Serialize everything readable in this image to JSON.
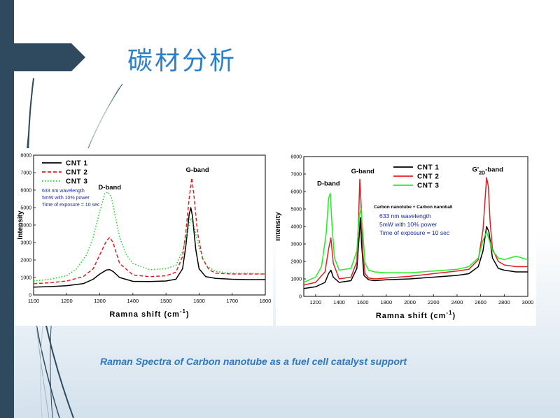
{
  "slide": {
    "title": "碳材分析",
    "caption": "Raman Spectra of Carbon nanotube as a fuel cell catalyst support",
    "colors": {
      "bar": "#2f4a5e",
      "title": "#2b7fc8",
      "caption": "#2c7ac1"
    }
  },
  "chart_data": [
    {
      "type": "line",
      "xlabel": "Ramna shift (cm-1)",
      "ylabel": "Intensity",
      "xlim": [
        1100,
        1800
      ],
      "ylim": [
        0,
        8000
      ],
      "xticks": [
        1100,
        1200,
        1300,
        1400,
        1500,
        1600,
        1700,
        1800
      ],
      "xtick_labels": [
        "1100",
        "1200",
        "1300",
        "1400",
        "1500",
        "1600",
        "1700",
        "1800"
      ],
      "yticks": [
        0,
        1000,
        2000,
        3000,
        4000,
        5000,
        6000,
        7000,
        8000
      ],
      "legend_position": "top-left",
      "annotations": [
        {
          "text": "D-band",
          "x": 1330,
          "y": 6050
        },
        {
          "text": "G-band",
          "x": 1595,
          "y": 7050
        }
      ],
      "note_lines": [
        "633 nm wavelength",
        "5mW with 10% power",
        "Time of exposure = 10 sec"
      ],
      "series": [
        {
          "name": "CNT 1",
          "style": "solid",
          "color": "#000000",
          "x": [
            1100,
            1150,
            1200,
            1250,
            1280,
            1300,
            1320,
            1330,
            1340,
            1360,
            1400,
            1450,
            1500,
            1530,
            1550,
            1560,
            1570,
            1575,
            1580,
            1590,
            1600,
            1620,
            1650,
            1700,
            1750,
            1800
          ],
          "y": [
            450,
            480,
            530,
            650,
            900,
            1200,
            1430,
            1450,
            1350,
            1000,
            780,
            770,
            800,
            900,
            1500,
            2800,
            4600,
            5000,
            4500,
            2600,
            1500,
            1050,
            950,
            900,
            880,
            880
          ]
        },
        {
          "name": "CNT 2",
          "style": "dashed",
          "color": "#e02020",
          "x": [
            1100,
            1150,
            1200,
            1250,
            1280,
            1300,
            1320,
            1330,
            1340,
            1360,
            1400,
            1450,
            1500,
            1530,
            1550,
            1560,
            1570,
            1578,
            1585,
            1595,
            1610,
            1630,
            1650,
            1700,
            1750,
            1800
          ],
          "y": [
            650,
            700,
            800,
            1050,
            1500,
            2300,
            3100,
            3300,
            3000,
            1800,
            1150,
            1050,
            1100,
            1300,
            2200,
            3600,
            5500,
            6700,
            5600,
            3600,
            2100,
            1450,
            1250,
            1200,
            1200,
            1200
          ]
        },
        {
          "name": "CNT 3",
          "style": "dotted",
          "color": "#22cc22",
          "x": [
            1100,
            1150,
            1200,
            1230,
            1260,
            1280,
            1300,
            1315,
            1325,
            1335,
            1345,
            1360,
            1380,
            1400,
            1450,
            1500,
            1530,
            1550,
            1565,
            1575,
            1585,
            1600,
            1620,
            1650,
            1700,
            1750,
            1800
          ],
          "y": [
            800,
            900,
            1100,
            1500,
            2300,
            3300,
            4800,
            5800,
            5900,
            5600,
            4700,
            3300,
            2300,
            1800,
            1450,
            1500,
            1700,
            2500,
            3600,
            4400,
            3900,
            2700,
            1700,
            1350,
            1250,
            1250,
            1200
          ]
        }
      ]
    },
    {
      "type": "line",
      "xlabel": "Ramna shift (cm-1)",
      "ylabel": "Intensity",
      "xlim": [
        1100,
        3000
      ],
      "ylim": [
        0,
        8000
      ],
      "xticks": [
        1200,
        1400,
        1600,
        1800,
        2000,
        2200,
        2400,
        2600,
        2800,
        3000
      ],
      "xtick_labels": [
        "1200",
        "1400",
        "1600",
        "1800",
        "2000",
        "2200",
        "2400",
        "2600",
        "2800",
        "3000"
      ],
      "yticks": [
        0,
        1000,
        2000,
        3000,
        4000,
        5000,
        6000,
        7000,
        8000
      ],
      "legend_position": "top-right",
      "annotations": [
        {
          "text": "D-band",
          "x": 1310,
          "y": 6350
        },
        {
          "text": "G-band",
          "x": 1600,
          "y": 7050
        },
        {
          "text": "G'2D-band",
          "x": 2660,
          "y": 7150
        }
      ],
      "note_title": "Carbon nanotube + Carbon nanoball",
      "note_lines": [
        "633 nm wavelength",
        "5mW with 10% power",
        "Time of exposure = 10 sec"
      ],
      "series": [
        {
          "name": "CNT 1",
          "style": "solid",
          "color": "#000000",
          "x": [
            1100,
            1200,
            1280,
            1310,
            1330,
            1350,
            1400,
            1500,
            1550,
            1570,
            1580,
            1590,
            1610,
            1650,
            1700,
            1800,
            2000,
            2200,
            2400,
            2500,
            2580,
            2620,
            2650,
            2670,
            2700,
            2750,
            2800,
            2900,
            3000
          ],
          "y": [
            450,
            550,
            800,
            1300,
            1500,
            1100,
            800,
            900,
            1600,
            3500,
            4500,
            3000,
            1200,
            950,
            900,
            950,
            1000,
            1100,
            1200,
            1300,
            1700,
            2600,
            4000,
            3700,
            2200,
            1600,
            1500,
            1400,
            1400
          ]
        },
        {
          "name": "CNT 2",
          "style": "solid",
          "color": "#e02020",
          "x": [
            1100,
            1200,
            1280,
            1310,
            1330,
            1350,
            1400,
            1500,
            1550,
            1565,
            1575,
            1585,
            1600,
            1620,
            1650,
            1700,
            1800,
            2000,
            2200,
            2400,
            2500,
            2580,
            2620,
            2650,
            2665,
            2680,
            2700,
            2750,
            2800,
            2900,
            3000
          ],
          "y": [
            650,
            800,
            1400,
            2700,
            3350,
            1900,
            1000,
            1100,
            2000,
            4500,
            6700,
            5400,
            2500,
            1300,
            1050,
            1000,
            1050,
            1150,
            1300,
            1450,
            1550,
            2100,
            3800,
            6800,
            6300,
            4300,
            2700,
            2000,
            1800,
            1700,
            1700
          ]
        },
        {
          "name": "CNT 3",
          "style": "solid",
          "color": "#22ee22",
          "x": [
            1100,
            1200,
            1250,
            1290,
            1310,
            1325,
            1340,
            1360,
            1400,
            1500,
            1550,
            1570,
            1585,
            1600,
            1620,
            1650,
            1700,
            1800,
            2000,
            2200,
            2400,
            2500,
            2580,
            2620,
            2650,
            2670,
            2700,
            2750,
            2800,
            2900,
            3000
          ],
          "y": [
            800,
            1100,
            1700,
            3600,
            5600,
            5900,
            4000,
            2200,
            1500,
            1600,
            2600,
            4600,
            5000,
            3700,
            1900,
            1500,
            1400,
            1350,
            1350,
            1450,
            1550,
            1700,
            2200,
            3200,
            3700,
            3300,
            2600,
            2200,
            2100,
            2300,
            2100
          ]
        }
      ]
    }
  ]
}
